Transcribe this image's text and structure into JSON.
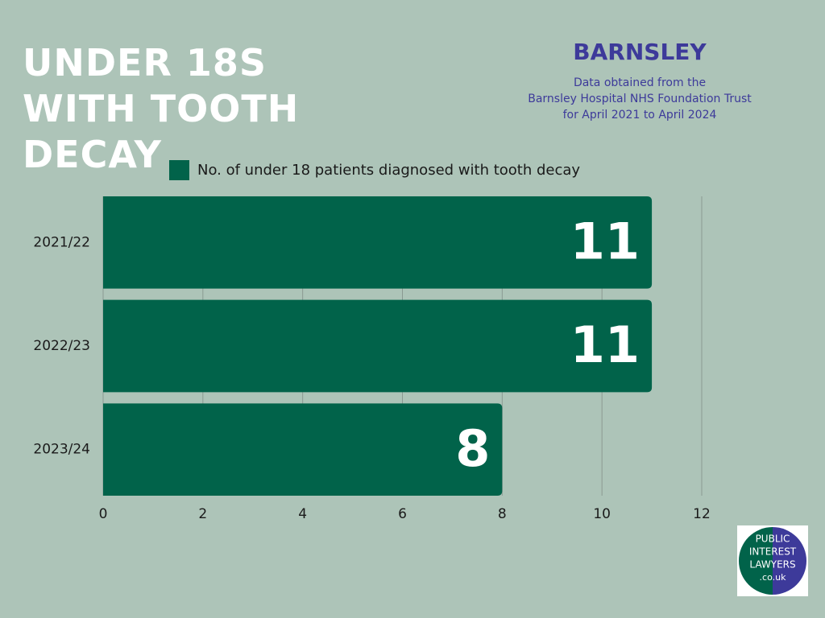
{
  "chart_data": {
    "type": "bar",
    "orientation": "horizontal",
    "title": "UNDER 18S WITH TOOTH DECAY",
    "subtitle": "BARNSLEY",
    "note": [
      "Data obtained from the",
      "Barnsley Hospital NHS Foundation Trust",
      "for April 2021 to April 2024"
    ],
    "categories": [
      "2021/22",
      "2022/23",
      "2023/24"
    ],
    "series": [
      {
        "name": "No. of under 18 patients diagnosed with tooth decay",
        "color": "#01634a",
        "values": [
          11,
          11,
          8
        ]
      }
    ],
    "xlim": [
      0,
      12
    ],
    "xticks": [
      0,
      2,
      4,
      6,
      8,
      10,
      12
    ],
    "grid": true,
    "legend": "top"
  },
  "logo": {
    "lines": [
      "PUBLIC",
      "INTEREST",
      "LAWYERS",
      ".co.uk"
    ]
  }
}
